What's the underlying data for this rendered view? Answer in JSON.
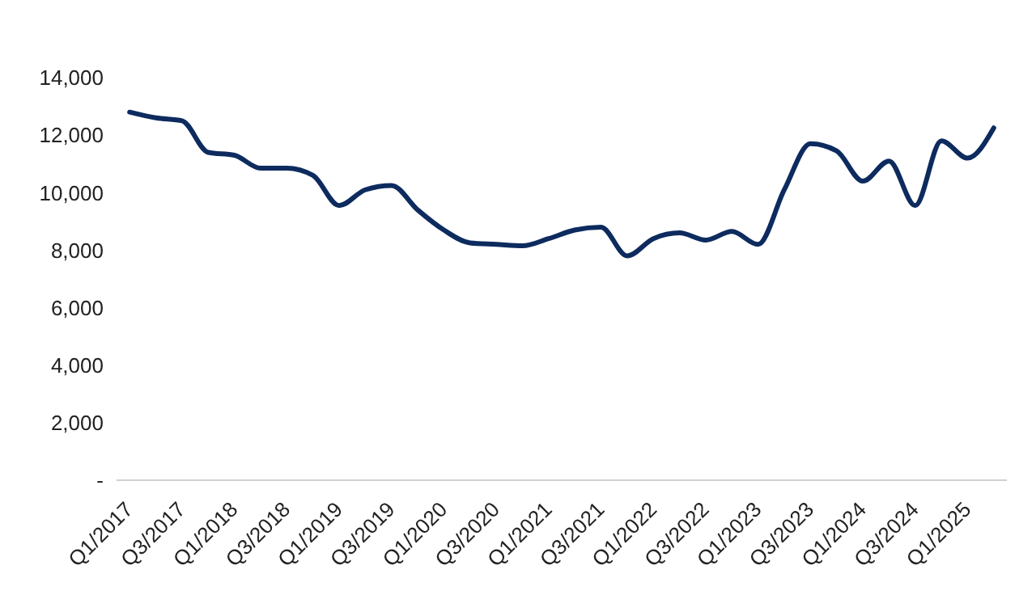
{
  "chart_data": {
    "type": "line",
    "categories": [
      "Q1/2017",
      null,
      "Q3/2017",
      null,
      "Q1/2018",
      null,
      "Q3/2018",
      null,
      "Q1/2019",
      null,
      "Q3/2019",
      null,
      "Q1/2020",
      null,
      "Q3/2020",
      null,
      "Q1/2021",
      null,
      "Q3/2021",
      null,
      "Q1/2022",
      null,
      "Q3/2022",
      null,
      "Q1/2023",
      null,
      "Q3/2023",
      null,
      "Q1/2024",
      null,
      "Q3/2024",
      null,
      "Q1/2025",
      null
    ],
    "series": [
      {
        "color": "#0d2b5e",
        "values": [
          12800,
          12600,
          12500,
          11400,
          11300,
          10850,
          10850,
          10600,
          9550,
          10100,
          10250,
          9400,
          8700,
          8250,
          8200,
          8150,
          8400,
          8700,
          8800,
          7800,
          8400,
          8600,
          8350,
          8650,
          8200,
          10100,
          11700,
          11450,
          10400,
          11100,
          9550,
          11800,
          11200,
          12250
        ]
      }
    ],
    "ylim": [
      0,
      14000
    ],
    "yticks": [
      {
        "value": 0,
        "label": "-"
      },
      {
        "value": 2000,
        "label": "2,000"
      },
      {
        "value": 4000,
        "label": "4,000"
      },
      {
        "value": 6000,
        "label": "6,000"
      },
      {
        "value": 8000,
        "label": "8,000"
      },
      {
        "value": 10000,
        "label": "10,000"
      },
      {
        "value": 12000,
        "label": "12,000"
      },
      {
        "value": 14000,
        "label": "14,000"
      }
    ],
    "grid": false,
    "legend": false,
    "marker": "none",
    "line_style": "solid"
  }
}
